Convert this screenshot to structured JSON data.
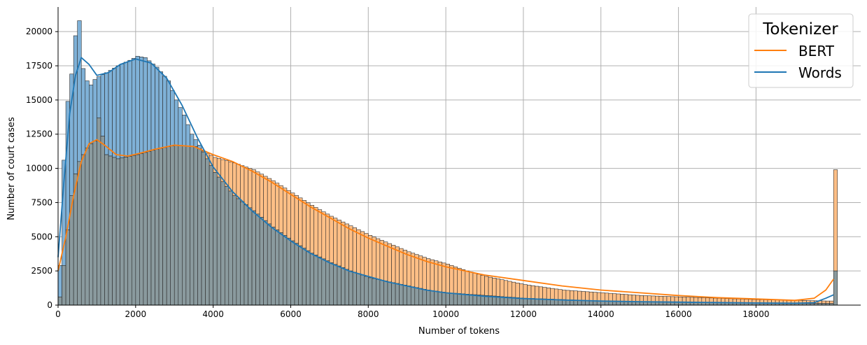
{
  "chart_data": {
    "type": "histogram",
    "xlabel": "Number of tokens",
    "ylabel": "Number of court cases",
    "xlim": [
      0,
      20700
    ],
    "ylim": [
      0,
      21800
    ],
    "xticks": [
      0,
      2000,
      4000,
      6000,
      8000,
      10000,
      12000,
      14000,
      16000,
      18000
    ],
    "xtick_labels": [
      "0",
      "2000",
      "4000",
      "6000",
      "8000",
      "10000",
      "12000",
      "14000",
      "16000",
      "18000"
    ],
    "yticks": [
      0,
      2500,
      5000,
      7500,
      10000,
      12500,
      15000,
      17500,
      20000
    ],
    "ytick_labels": [
      "0",
      "2500",
      "5000",
      "7500",
      "10000",
      "12500",
      "15000",
      "17500",
      "20000"
    ],
    "grid": true,
    "bin_width": 100,
    "legend": {
      "title": "Tokenizer",
      "position": "top-right",
      "entries": [
        {
          "label": "BERT",
          "color": "#ff7f0e"
        },
        {
          "label": "Words",
          "color": "#1f77b4"
        }
      ]
    },
    "series": [
      {
        "name": "BERT",
        "color": "#ff7f0e",
        "fill": "#ffbf86",
        "peak_points": [
          [
            0,
            600
          ],
          [
            100,
            2900
          ],
          [
            200,
            5500
          ],
          [
            300,
            8000
          ],
          [
            400,
            9600
          ],
          [
            500,
            10500
          ],
          [
            600,
            11000
          ],
          [
            700,
            11500
          ],
          [
            800,
            11800
          ],
          [
            900,
            12000
          ],
          [
            1000,
            13700
          ],
          [
            1200,
            11000
          ],
          [
            1500,
            10700
          ],
          [
            2000,
            11000
          ],
          [
            2500,
            11400
          ],
          [
            3000,
            11700
          ],
          [
            3500,
            11600
          ],
          [
            3800,
            11100
          ],
          [
            4000,
            10800
          ],
          [
            4500,
            10400
          ],
          [
            5000,
            9900
          ],
          [
            5500,
            9100
          ],
          [
            6000,
            8200
          ],
          [
            6500,
            7300
          ],
          [
            7000,
            6500
          ],
          [
            7500,
            5800
          ],
          [
            8000,
            5100
          ],
          [
            8500,
            4500
          ],
          [
            9000,
            3900
          ],
          [
            9500,
            3400
          ],
          [
            10000,
            3000
          ],
          [
            10500,
            2500
          ],
          [
            11000,
            2100
          ],
          [
            11500,
            1800
          ],
          [
            12000,
            1500
          ],
          [
            12500,
            1300
          ],
          [
            13000,
            1100
          ],
          [
            13500,
            1000
          ],
          [
            14000,
            900
          ],
          [
            14500,
            800
          ],
          [
            15000,
            700
          ],
          [
            15500,
            650
          ],
          [
            16000,
            600
          ],
          [
            16500,
            550
          ],
          [
            17000,
            500
          ],
          [
            17500,
            450
          ],
          [
            18000,
            400
          ],
          [
            18500,
            380
          ],
          [
            19000,
            350
          ],
          [
            19500,
            320
          ],
          [
            19800,
            300
          ],
          [
            20000,
            9900
          ]
        ],
        "kde": [
          [
            0,
            2500
          ],
          [
            200,
            5000
          ],
          [
            400,
            8000
          ],
          [
            600,
            10500
          ],
          [
            800,
            11800
          ],
          [
            1000,
            12100
          ],
          [
            1200,
            11700
          ],
          [
            1500,
            11000
          ],
          [
            1800,
            10900
          ],
          [
            2100,
            11100
          ],
          [
            2500,
            11400
          ],
          [
            3000,
            11700
          ],
          [
            3500,
            11600
          ],
          [
            4000,
            11000
          ],
          [
            4500,
            10500
          ],
          [
            5000,
            9800
          ],
          [
            5500,
            9000
          ],
          [
            6000,
            8100
          ],
          [
            6500,
            7200
          ],
          [
            7000,
            6400
          ],
          [
            7500,
            5600
          ],
          [
            8000,
            4900
          ],
          [
            8500,
            4300
          ],
          [
            9000,
            3700
          ],
          [
            9500,
            3200
          ],
          [
            10000,
            2800
          ],
          [
            11000,
            2200
          ],
          [
            12000,
            1800
          ],
          [
            13000,
            1400
          ],
          [
            14000,
            1100
          ],
          [
            15000,
            900
          ],
          [
            16000,
            700
          ],
          [
            17000,
            550
          ],
          [
            18000,
            450
          ],
          [
            19000,
            350
          ],
          [
            19500,
            500
          ],
          [
            19800,
            1100
          ],
          [
            20000,
            1900
          ]
        ]
      },
      {
        "name": "Words",
        "color": "#1f77b4",
        "fill": "#7fb1d7",
        "peak_points": [
          [
            0,
            2900
          ],
          [
            100,
            10600
          ],
          [
            200,
            14900
          ],
          [
            300,
            16900
          ],
          [
            400,
            19700
          ],
          [
            500,
            20800
          ],
          [
            600,
            17300
          ],
          [
            700,
            16400
          ],
          [
            800,
            16100
          ],
          [
            900,
            16500
          ],
          [
            1000,
            16700
          ],
          [
            1200,
            17000
          ],
          [
            1500,
            17500
          ],
          [
            1800,
            17900
          ],
          [
            2000,
            18200
          ],
          [
            2200,
            18100
          ],
          [
            2500,
            17400
          ],
          [
            2800,
            16400
          ],
          [
            3000,
            15000
          ],
          [
            3200,
            13900
          ],
          [
            3400,
            12500
          ],
          [
            3600,
            11700
          ],
          [
            3800,
            10700
          ],
          [
            4000,
            9700
          ],
          [
            4500,
            8000
          ],
          [
            5000,
            6900
          ],
          [
            5500,
            5700
          ],
          [
            6000,
            4700
          ],
          [
            6500,
            3800
          ],
          [
            7000,
            3100
          ],
          [
            7500,
            2500
          ],
          [
            8000,
            2000
          ],
          [
            8500,
            1700
          ],
          [
            9000,
            1400
          ],
          [
            9500,
            1100
          ],
          [
            10000,
            900
          ],
          [
            11000,
            700
          ],
          [
            12000,
            500
          ],
          [
            13000,
            400
          ],
          [
            14000,
            300
          ],
          [
            15000,
            250
          ],
          [
            16000,
            200
          ],
          [
            17000,
            180
          ],
          [
            18000,
            150
          ],
          [
            19000,
            130
          ],
          [
            19800,
            120
          ],
          [
            20000,
            2500
          ]
        ],
        "kde": [
          [
            0,
            3500
          ],
          [
            150,
            9000
          ],
          [
            300,
            14000
          ],
          [
            450,
            16800
          ],
          [
            600,
            18100
          ],
          [
            800,
            17600
          ],
          [
            1000,
            16800
          ],
          [
            1300,
            17000
          ],
          [
            1600,
            17600
          ],
          [
            2000,
            18000
          ],
          [
            2400,
            17700
          ],
          [
            2800,
            16600
          ],
          [
            3200,
            14600
          ],
          [
            3600,
            12200
          ],
          [
            4000,
            10100
          ],
          [
            4500,
            8300
          ],
          [
            5000,
            6900
          ],
          [
            5500,
            5700
          ],
          [
            6000,
            4700
          ],
          [
            6500,
            3800
          ],
          [
            7000,
            3100
          ],
          [
            7500,
            2500
          ],
          [
            8000,
            2100
          ],
          [
            8500,
            1700
          ],
          [
            9000,
            1400
          ],
          [
            9500,
            1100
          ],
          [
            10000,
            900
          ],
          [
            11000,
            650
          ],
          [
            12000,
            480
          ],
          [
            13000,
            380
          ],
          [
            14000,
            300
          ],
          [
            15000,
            250
          ],
          [
            16000,
            220
          ],
          [
            17000,
            190
          ],
          [
            18000,
            160
          ],
          [
            19000,
            140
          ],
          [
            19500,
            180
          ],
          [
            19800,
            500
          ],
          [
            20000,
            750
          ]
        ]
      }
    ]
  }
}
